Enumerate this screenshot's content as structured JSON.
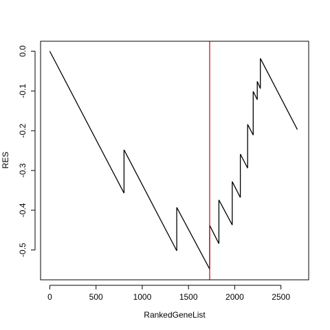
{
  "chart_data": {
    "type": "line",
    "title": "",
    "xlabel": "RankedGeneList",
    "ylabel": "RES",
    "xlim": [
      -100,
      2800
    ],
    "ylim": [
      -0.575,
      0.025
    ],
    "x_ticks": [
      0,
      500,
      1000,
      1500,
      2000,
      2500
    ],
    "y_ticks": [
      0.0,
      -0.1,
      -0.2,
      -0.3,
      -0.4,
      -0.5
    ],
    "x_tick_labels": [
      "0",
      "500",
      "1000",
      "1500",
      "2000",
      "2500"
    ],
    "y_tick_labels": [
      "0.0",
      "-0.1",
      "-0.2",
      "-0.3",
      "-0.4",
      "-0.5"
    ],
    "grid": false,
    "series": [
      {
        "color": "#000000",
        "points": [
          [
            0,
            0.0
          ],
          [
            803,
            -0.357
          ],
          [
            803,
            -0.248
          ],
          [
            1373,
            -0.502
          ],
          [
            1373,
            -0.393
          ],
          [
            1729,
            -0.548
          ],
          [
            1729,
            -0.438
          ],
          [
            1829,
            -0.484
          ],
          [
            1829,
            -0.374
          ],
          [
            1973,
            -0.437
          ],
          [
            1973,
            -0.328
          ],
          [
            2061,
            -0.368
          ],
          [
            2061,
            -0.259
          ],
          [
            2140,
            -0.294
          ],
          [
            2140,
            -0.184
          ],
          [
            2200,
            -0.211
          ],
          [
            2200,
            -0.101
          ],
          [
            2244,
            -0.122
          ],
          [
            2244,
            -0.076
          ],
          [
            2277,
            -0.094
          ],
          [
            2277,
            -0.018
          ],
          [
            2677,
            -0.197
          ]
        ]
      }
    ],
    "annotations": [
      {
        "type": "vline",
        "x": 1729,
        "color": "#cc0000"
      }
    ]
  }
}
